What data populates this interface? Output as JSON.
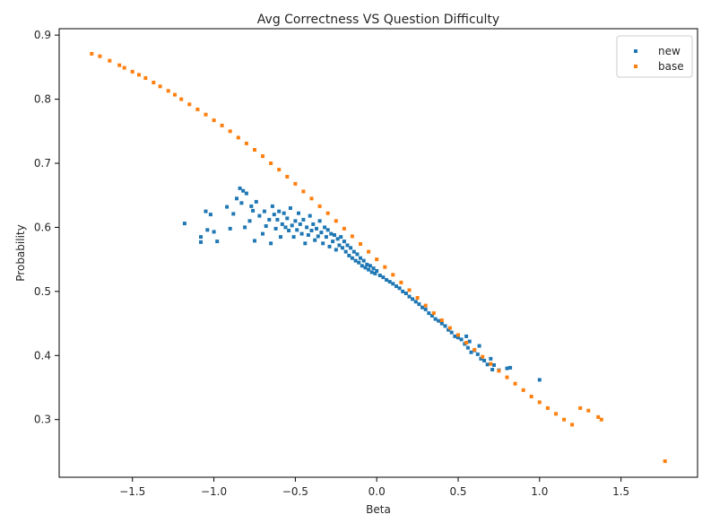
{
  "chart_data": {
    "type": "scatter",
    "title": "Avg Correctness VS Question Difficulty",
    "xlabel": "Beta",
    "ylabel": "Probability",
    "xlim": [
      -1.95,
      1.97
    ],
    "ylim": [
      0.21,
      0.91
    ],
    "xticks": [
      -1.5,
      -1.0,
      -0.5,
      0.0,
      0.5,
      1.0,
      1.5
    ],
    "xtick_labels": [
      "−1.5",
      "−1.0",
      "−0.5",
      "0.0",
      "0.5",
      "1.0",
      "1.5"
    ],
    "yticks": [
      0.3,
      0.4,
      0.5,
      0.6,
      0.7,
      0.8,
      0.9
    ],
    "ytick_labels": [
      "0.3",
      "0.4",
      "0.5",
      "0.6",
      "0.7",
      "0.8",
      "0.9"
    ],
    "grid": false,
    "legend_position": "top-right",
    "series": [
      {
        "name": "new",
        "color": "#1f77b4",
        "points": [
          [
            -1.18,
            0.606
          ],
          [
            -1.08,
            0.585
          ],
          [
            -1.08,
            0.577
          ],
          [
            -1.05,
            0.625
          ],
          [
            -1.04,
            0.596
          ],
          [
            -1.02,
            0.62
          ],
          [
            -1.0,
            0.593
          ],
          [
            -0.98,
            0.578
          ],
          [
            -0.92,
            0.632
          ],
          [
            -0.9,
            0.598
          ],
          [
            -0.88,
            0.621
          ],
          [
            -0.86,
            0.645
          ],
          [
            -0.84,
            0.661
          ],
          [
            -0.83,
            0.638
          ],
          [
            -0.82,
            0.657
          ],
          [
            -0.81,
            0.6
          ],
          [
            -0.8,
            0.653
          ],
          [
            -0.78,
            0.61
          ],
          [
            -0.77,
            0.633
          ],
          [
            -0.76,
            0.626
          ],
          [
            -0.75,
            0.579
          ],
          [
            -0.74,
            0.64
          ],
          [
            -0.72,
            0.618
          ],
          [
            -0.7,
            0.59
          ],
          [
            -0.69,
            0.625
          ],
          [
            -0.68,
            0.602
          ],
          [
            -0.66,
            0.612
          ],
          [
            -0.65,
            0.575
          ],
          [
            -0.64,
            0.633
          ],
          [
            -0.63,
            0.62
          ],
          [
            -0.62,
            0.598
          ],
          [
            -0.61,
            0.612
          ],
          [
            -0.6,
            0.625
          ],
          [
            -0.59,
            0.585
          ],
          [
            -0.58,
            0.605
          ],
          [
            -0.57,
            0.622
          ],
          [
            -0.56,
            0.6
          ],
          [
            -0.55,
            0.614
          ],
          [
            -0.54,
            0.595
          ],
          [
            -0.53,
            0.63
          ],
          [
            -0.52,
            0.603
          ],
          [
            -0.51,
            0.585
          ],
          [
            -0.5,
            0.61
          ],
          [
            -0.49,
            0.596
          ],
          [
            -0.48,
            0.622
          ],
          [
            -0.47,
            0.605
          ],
          [
            -0.46,
            0.59
          ],
          [
            -0.45,
            0.612
          ],
          [
            -0.44,
            0.575
          ],
          [
            -0.43,
            0.6
          ],
          [
            -0.42,
            0.588
          ],
          [
            -0.41,
            0.618
          ],
          [
            -0.4,
            0.595
          ],
          [
            -0.39,
            0.605
          ],
          [
            -0.38,
            0.58
          ],
          [
            -0.37,
            0.598
          ],
          [
            -0.36,
            0.586
          ],
          [
            -0.35,
            0.61
          ],
          [
            -0.34,
            0.592
          ],
          [
            -0.33,
            0.575
          ],
          [
            -0.32,
            0.6
          ],
          [
            -0.31,
            0.585
          ],
          [
            -0.3,
            0.596
          ],
          [
            -0.29,
            0.57
          ],
          [
            -0.28,
            0.59
          ],
          [
            -0.27,
            0.578
          ],
          [
            -0.26,
            0.588
          ],
          [
            -0.25,
            0.565
          ],
          [
            -0.24,
            0.582
          ],
          [
            -0.23,
            0.572
          ],
          [
            -0.22,
            0.585
          ],
          [
            -0.21,
            0.568
          ],
          [
            -0.2,
            0.578
          ],
          [
            -0.19,
            0.562
          ],
          [
            -0.18,
            0.572
          ],
          [
            -0.17,
            0.556
          ],
          [
            -0.16,
            0.568
          ],
          [
            -0.15,
            0.552
          ],
          [
            -0.14,
            0.562
          ],
          [
            -0.13,
            0.548
          ],
          [
            -0.12,
            0.558
          ],
          [
            -0.11,
            0.545
          ],
          [
            -0.1,
            0.552
          ],
          [
            -0.09,
            0.54
          ],
          [
            -0.08,
            0.548
          ],
          [
            -0.07,
            0.537
          ],
          [
            -0.06,
            0.542
          ],
          [
            -0.05,
            0.534
          ],
          [
            -0.04,
            0.54
          ],
          [
            -0.03,
            0.53
          ],
          [
            -0.02,
            0.536
          ],
          [
            -0.01,
            0.528
          ],
          [
            0.0,
            0.532
          ],
          [
            0.02,
            0.525
          ],
          [
            0.04,
            0.522
          ],
          [
            0.06,
            0.518
          ],
          [
            0.08,
            0.515
          ],
          [
            0.1,
            0.512
          ],
          [
            0.12,
            0.508
          ],
          [
            0.14,
            0.505
          ],
          [
            0.16,
            0.5
          ],
          [
            0.18,
            0.497
          ],
          [
            0.2,
            0.492
          ],
          [
            0.22,
            0.488
          ],
          [
            0.24,
            0.484
          ],
          [
            0.26,
            0.48
          ],
          [
            0.28,
            0.475
          ],
          [
            0.3,
            0.472
          ],
          [
            0.32,
            0.466
          ],
          [
            0.34,
            0.462
          ],
          [
            0.36,
            0.457
          ],
          [
            0.38,
            0.454
          ],
          [
            0.4,
            0.45
          ],
          [
            0.42,
            0.446
          ],
          [
            0.44,
            0.44
          ],
          [
            0.46,
            0.436
          ],
          [
            0.48,
            0.43
          ],
          [
            0.5,
            0.428
          ],
          [
            0.52,
            0.425
          ],
          [
            0.54,
            0.418
          ],
          [
            0.56,
            0.412
          ],
          [
            0.58,
            0.405
          ],
          [
            0.6,
            0.408
          ],
          [
            0.62,
            0.402
          ],
          [
            0.64,
            0.395
          ],
          [
            0.66,
            0.392
          ],
          [
            0.68,
            0.386
          ],
          [
            0.7,
            0.395
          ],
          [
            0.72,
            0.385
          ],
          [
            0.75,
            0.377
          ],
          [
            0.8,
            0.38
          ],
          [
            0.82,
            0.381
          ],
          [
            0.71,
            0.378
          ],
          [
            0.55,
            0.43
          ],
          [
            0.57,
            0.422
          ],
          [
            0.63,
            0.415
          ],
          [
            1.0,
            0.362
          ]
        ]
      },
      {
        "name": "base",
        "color": "#ff7f0e",
        "points": [
          [
            -1.75,
            0.871
          ],
          [
            -1.7,
            0.867
          ],
          [
            -1.64,
            0.86
          ],
          [
            -1.58,
            0.853
          ],
          [
            -1.55,
            0.849
          ],
          [
            -1.5,
            0.843
          ],
          [
            -1.46,
            0.838
          ],
          [
            -1.42,
            0.833
          ],
          [
            -1.37,
            0.826
          ],
          [
            -1.33,
            0.82
          ],
          [
            -1.28,
            0.813
          ],
          [
            -1.24,
            0.807
          ],
          [
            -1.2,
            0.8
          ],
          [
            -1.15,
            0.792
          ],
          [
            -1.1,
            0.784
          ],
          [
            -1.05,
            0.776
          ],
          [
            -1.0,
            0.767
          ],
          [
            -0.95,
            0.759
          ],
          [
            -0.9,
            0.75
          ],
          [
            -0.85,
            0.74
          ],
          [
            -0.8,
            0.731
          ],
          [
            -0.75,
            0.721
          ],
          [
            -0.7,
            0.711
          ],
          [
            -0.65,
            0.7
          ],
          [
            -0.6,
            0.69
          ],
          [
            -0.55,
            0.679
          ],
          [
            -0.5,
            0.668
          ],
          [
            -0.45,
            0.656
          ],
          [
            -0.4,
            0.645
          ],
          [
            -0.35,
            0.633
          ],
          [
            -0.3,
            0.622
          ],
          [
            -0.25,
            0.61
          ],
          [
            -0.2,
            0.598
          ],
          [
            -0.15,
            0.586
          ],
          [
            -0.1,
            0.574
          ],
          [
            -0.05,
            0.562
          ],
          [
            0.0,
            0.55
          ],
          [
            0.05,
            0.538
          ],
          [
            0.1,
            0.526
          ],
          [
            0.15,
            0.514
          ],
          [
            0.2,
            0.502
          ],
          [
            0.25,
            0.49
          ],
          [
            0.3,
            0.478
          ],
          [
            0.35,
            0.466
          ],
          [
            0.4,
            0.455
          ],
          [
            0.45,
            0.443
          ],
          [
            0.5,
            0.432
          ],
          [
            0.55,
            0.42
          ],
          [
            0.6,
            0.409
          ],
          [
            0.65,
            0.398
          ],
          [
            0.7,
            0.387
          ],
          [
            0.75,
            0.376
          ],
          [
            0.8,
            0.366
          ],
          [
            0.85,
            0.356
          ],
          [
            0.9,
            0.346
          ],
          [
            0.95,
            0.336
          ],
          [
            1.0,
            0.327
          ],
          [
            1.05,
            0.318
          ],
          [
            1.1,
            0.309
          ],
          [
            1.15,
            0.3
          ],
          [
            1.2,
            0.292
          ],
          [
            1.25,
            0.318
          ],
          [
            1.3,
            0.314
          ],
          [
            1.36,
            0.304
          ],
          [
            1.38,
            0.3
          ],
          [
            1.77,
            0.235
          ]
        ]
      }
    ]
  }
}
